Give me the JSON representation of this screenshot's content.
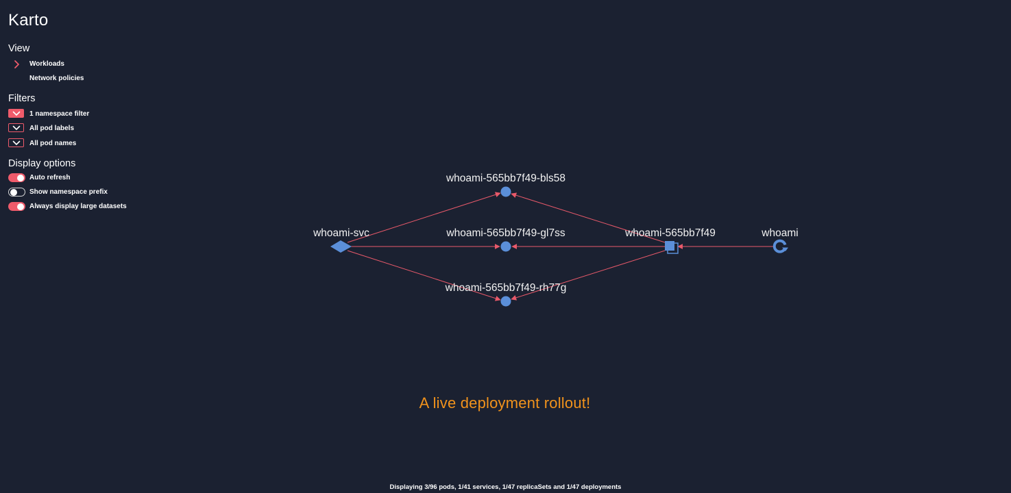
{
  "app": {
    "title": "Karto"
  },
  "view": {
    "heading": "View",
    "items": [
      {
        "label": "Workloads",
        "selected": true
      },
      {
        "label": "Network policies",
        "selected": false
      }
    ]
  },
  "filters": {
    "heading": "Filters",
    "items": [
      {
        "label": "1 namespace filter",
        "active": true
      },
      {
        "label": "All pod labels",
        "active": false
      },
      {
        "label": "All pod names",
        "active": false
      }
    ]
  },
  "display_options": {
    "heading": "Display options",
    "items": [
      {
        "label": "Auto refresh",
        "enabled": true
      },
      {
        "label": "Show namespace prefix",
        "enabled": false
      },
      {
        "label": "Always display large datasets",
        "enabled": true
      }
    ]
  },
  "graph": {
    "nodes": [
      {
        "id": "svc",
        "label": "whoami-svc",
        "kind": "service",
        "icon": "diamond-icon"
      },
      {
        "id": "pod1",
        "label": "whoami-565bb7f49-bls58",
        "kind": "pod",
        "icon": "circle-icon"
      },
      {
        "id": "pod2",
        "label": "whoami-565bb7f49-gl7ss",
        "kind": "pod",
        "icon": "circle-icon"
      },
      {
        "id": "pod3",
        "label": "whoami-565bb7f49-rh77g",
        "kind": "pod",
        "icon": "circle-icon"
      },
      {
        "id": "rs",
        "label": "whoami-565bb7f49",
        "kind": "replicaset",
        "icon": "stacked-square-icon"
      },
      {
        "id": "dep",
        "label": "whoami",
        "kind": "deployment",
        "icon": "rollout-icon"
      }
    ],
    "edges": [
      {
        "from": "svc",
        "to": "pod1"
      },
      {
        "from": "svc",
        "to": "pod2"
      },
      {
        "from": "svc",
        "to": "pod3"
      },
      {
        "from": "rs",
        "to": "pod1"
      },
      {
        "from": "rs",
        "to": "pod2"
      },
      {
        "from": "rs",
        "to": "pod3"
      },
      {
        "from": "dep",
        "to": "rs"
      }
    ],
    "colors": {
      "node": "#5b8fd9",
      "edge": "#e8596a"
    }
  },
  "banner": "A live deployment rollout!",
  "status": "Displaying 3/96 pods, 1/41 services, 1/47 replicaSets and 1/47 deployments",
  "theme": {
    "background": "#1b2131",
    "accent": "#ef5b6b",
    "banner": "#f2931c"
  }
}
